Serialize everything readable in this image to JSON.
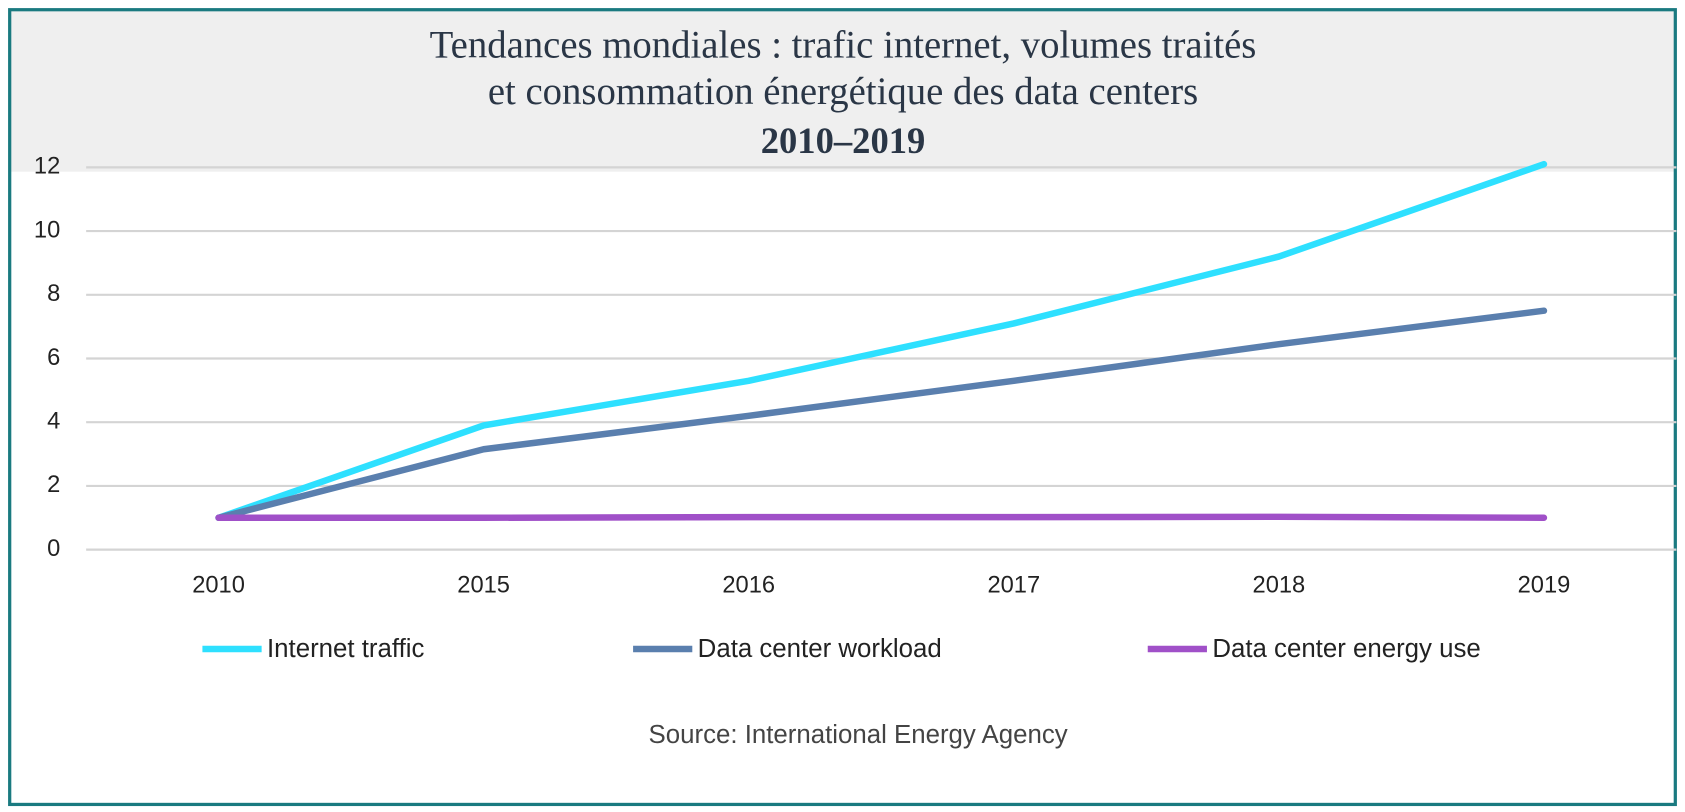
{
  "chart_data": {
    "type": "line",
    "title": [
      "Tendances mondiales : trafic internet, volumes traités",
      "et consommation énergétique des data centers"
    ],
    "subtitle": "2010–2019",
    "categories": [
      "2010",
      "2015",
      "2016",
      "2017",
      "2018",
      "2019"
    ],
    "series": [
      {
        "name": "Internet traffic",
        "color": "#2ee0ff",
        "values": [
          1,
          3.9,
          5.3,
          7.1,
          9.2,
          12.1
        ]
      },
      {
        "name": "Data center workload",
        "color": "#5a7fae",
        "values": [
          1,
          3.15,
          4.2,
          5.3,
          6.45,
          7.5
        ]
      },
      {
        "name": "Data center energy use",
        "color": "#a050c8",
        "values": [
          1,
          1,
          1.02,
          1.02,
          1.03,
          1
        ]
      }
    ],
    "ylim": [
      0,
      12
    ],
    "yticks": [
      0,
      2,
      4,
      6,
      8,
      10,
      12
    ],
    "grid": true,
    "source": "Source: International Energy Agency"
  }
}
